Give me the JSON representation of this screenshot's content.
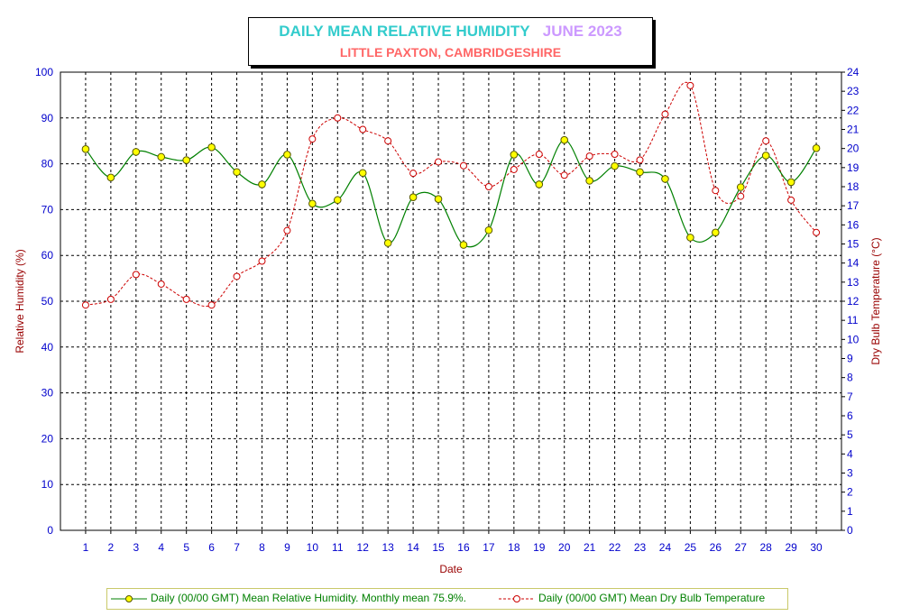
{
  "title": {
    "main": "DAILY MEAN RELATIVE HUMIDITY",
    "period": "JUNE 2023",
    "location": "LITTLE PAXTON, CAMBRIDGESHIRE"
  },
  "colors": {
    "title_main": "#33cccc",
    "title_period": "#cc99ff",
    "title_location": "#ff6666",
    "humidity_line": "#008000",
    "humidity_marker": "#ffff00",
    "temperature": "#cc0000",
    "tick_labels": "#0000cc",
    "axis_titles": "#990000",
    "legend_text": "#008000"
  },
  "chart_data": {
    "type": "line",
    "xlabel": "Date",
    "ylabel": "Relative Humidity (%)",
    "y2label": "Dry Bulb Temperature (°C)",
    "x": [
      1,
      2,
      3,
      4,
      5,
      6,
      7,
      8,
      9,
      10,
      11,
      12,
      13,
      14,
      15,
      16,
      17,
      18,
      19,
      20,
      21,
      22,
      23,
      24,
      25,
      26,
      27,
      28,
      29,
      30
    ],
    "xlim": [
      0,
      31
    ],
    "ylim": [
      0,
      100
    ],
    "y2lim": [
      0,
      24
    ],
    "grid": true,
    "legend_position": "bottom",
    "series": [
      {
        "name": "Daily (00/00 GMT) Mean Relative Humidity. Monthly mean 75.9%.",
        "axis": "left",
        "values": [
          83.2,
          77.0,
          82.6,
          81.5,
          80.8,
          83.6,
          78.2,
          75.5,
          82.0,
          71.3,
          72.1,
          78.0,
          62.7,
          72.7,
          72.3,
          62.3,
          65.5,
          82.0,
          75.5,
          85.2,
          76.3,
          79.5,
          78.2,
          76.7,
          63.9,
          65.0,
          74.9,
          81.8,
          76.0,
          83.4
        ]
      },
      {
        "name": "Daily (00/00 GMT) Mean Dry Bulb Temperature",
        "axis": "right",
        "values": [
          11.8,
          12.1,
          13.4,
          12.9,
          12.1,
          11.8,
          13.3,
          14.1,
          15.7,
          20.5,
          21.6,
          21.0,
          20.4,
          18.7,
          19.3,
          19.1,
          18.0,
          18.9,
          19.7,
          18.6,
          19.6,
          19.7,
          19.4,
          21.8,
          23.3,
          17.8,
          17.5,
          20.4,
          17.3,
          15.6
        ]
      }
    ]
  }
}
